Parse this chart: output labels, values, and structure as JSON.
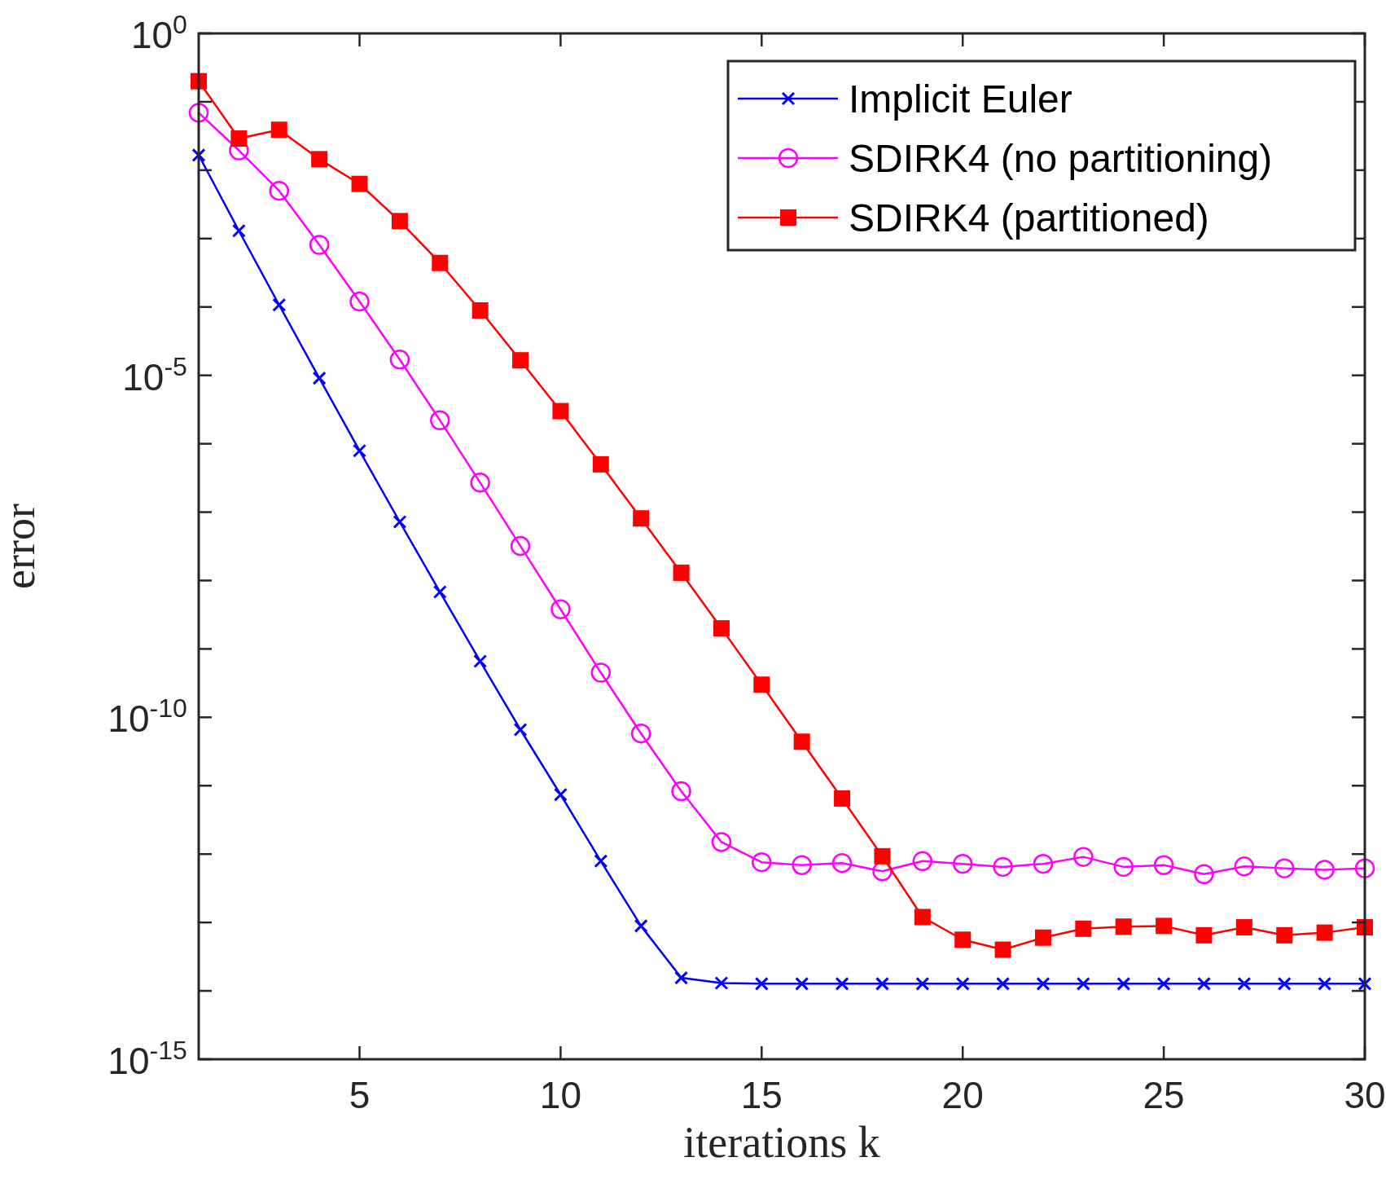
{
  "chart_data": {
    "type": "line",
    "xlabel": "iterations k",
    "ylabel": "error",
    "log": "y",
    "grid": false,
    "legend": "top right",
    "x": [
      1,
      2,
      3,
      4,
      5,
      6,
      7,
      8,
      9,
      10,
      11,
      12,
      13,
      14,
      15,
      16,
      17,
      18,
      19,
      20,
      21,
      22,
      23,
      24,
      25,
      26,
      27,
      28,
      29,
      30
    ],
    "xlim": [
      1,
      30
    ],
    "xticks": [
      5,
      10,
      15,
      20,
      25,
      30
    ],
    "ylim": [
      1e-15,
      1
    ],
    "yticks": [
      {
        "value": 1,
        "label": "10$^{0}$"
      },
      {
        "value": 0.1,
        "label": null
      },
      {
        "value": 0.01,
        "label": null
      },
      {
        "value": 0.001,
        "label": null
      },
      {
        "value": 0.0001,
        "label": null
      },
      {
        "value": 1e-05,
        "label": "10$^{-5}$"
      },
      {
        "value": 1e-06,
        "label": null
      },
      {
        "value": 1e-07,
        "label": null
      },
      {
        "value": 1e-08,
        "label": null
      },
      {
        "value": 1e-09,
        "label": null
      },
      {
        "value": 1e-10,
        "label": "10$^{-10}$"
      },
      {
        "value": 1e-11,
        "label": null
      },
      {
        "value": 1e-12,
        "label": null
      },
      {
        "value": 1e-13,
        "label": null
      },
      {
        "value": 1e-14,
        "label": null
      },
      {
        "value": 1e-15,
        "label": "10$^{-15}$"
      }
    ],
    "series": [
      {
        "name": "Implicit Euler",
        "color": "#0000ff",
        "marker": "cross",
        "values": [
          0.0166,
          0.0013,
          0.000107,
          9.1e-06,
          7.9e-07,
          7.2e-08,
          6.8e-09,
          6.6e-10,
          6.6e-11,
          7.4e-12,
          7.9e-13,
          8.9e-14,
          1.55e-14,
          1.3e-14,
          1.27e-14,
          1.27e-14,
          1.27e-14,
          1.27e-14,
          1.27e-14,
          1.27e-14,
          1.27e-14,
          1.27e-14,
          1.27e-14,
          1.27e-14,
          1.27e-14,
          1.27e-14,
          1.27e-14,
          1.27e-14,
          1.27e-14,
          1.27e-14
        ]
      },
      {
        "name": "SDIRK4 (no partitioning)",
        "color": "#ff00ff",
        "marker": "circle",
        "values": [
          0.069,
          0.0195,
          0.005,
          0.00081,
          0.00012,
          1.7e-05,
          2.2e-06,
          2.7e-07,
          3.2e-08,
          3.8e-09,
          4.5e-10,
          5.8e-11,
          8.3e-12,
          1.5e-12,
          7.6e-13,
          6.9e-13,
          7.4e-13,
          5.6e-13,
          7.9e-13,
          7.2e-13,
          6.5e-13,
          7.2e-13,
          9.1e-13,
          6.5e-13,
          6.9e-13,
          5.1e-13,
          6.6e-13,
          6.2e-13,
          5.9e-13,
          6.2e-13
        ]
      },
      {
        "name": "SDIRK4 (partitioned)",
        "color": "#ff0000",
        "marker": "square",
        "values": [
          0.2,
          0.029,
          0.039,
          0.0145,
          0.0063,
          0.0018,
          0.00044,
          8.9e-05,
          1.66e-05,
          3e-06,
          5e-07,
          8.1e-08,
          1.3e-08,
          2e-09,
          3e-10,
          4.4e-11,
          6.5e-12,
          9.3e-13,
          1.2e-13,
          5.6e-14,
          4e-14,
          6e-14,
          8.1e-14,
          8.7e-14,
          8.9e-14,
          6.5e-14,
          8.5e-14,
          6.5e-14,
          7.1e-14,
          8.5e-14
        ]
      }
    ]
  }
}
